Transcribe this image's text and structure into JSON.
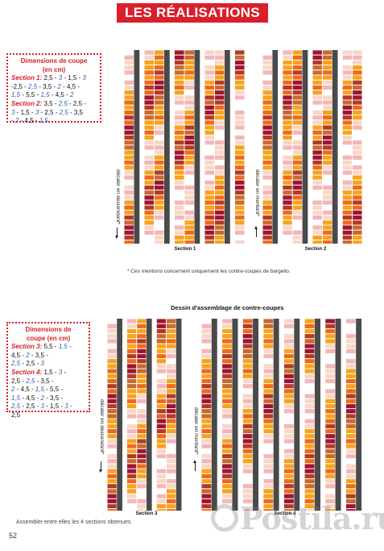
{
  "header": {
    "title": "LES RÉALISATIONS"
  },
  "dimensions_top": {
    "title_line1": "Dimensions de coupe",
    "title_line2": "(en cm)",
    "lines": [
      [
        {
          "t": "Section 1:",
          "c": "red"
        },
        {
          "t": " 2,5 - ",
          "c": "blk"
        },
        {
          "t": "3",
          "c": "blue"
        },
        {
          "t": " - 1,5 - ",
          "c": "blk"
        },
        {
          "t": "3",
          "c": "blue"
        }
      ],
      [
        {
          "t": "-2,5 - ",
          "c": "blk"
        },
        {
          "t": "2,5",
          "c": "blue"
        },
        {
          "t": " - 3,5 - ",
          "c": "blk"
        },
        {
          "t": "2",
          "c": "blue"
        },
        {
          "t": " - 4,5 -",
          "c": "blk"
        }
      ],
      [
        {
          "t": "1,5",
          "c": "blue"
        },
        {
          "t": " - 5,5 - ",
          "c": "blk"
        },
        {
          "t": "1,5",
          "c": "blue"
        },
        {
          "t": " - 4,5 - ",
          "c": "blk"
        },
        {
          "t": "2",
          "c": "blue"
        }
      ],
      [
        {
          "t": "Section 2:",
          "c": "red"
        },
        {
          "t": " 3,5 - ",
          "c": "blk"
        },
        {
          "t": "2,5",
          "c": "blue"
        },
        {
          "t": " - 2,5 -",
          "c": "blk"
        }
      ],
      [
        {
          "t": "3",
          "c": "blue"
        },
        {
          "t": " - 1,5 - ",
          "c": "blk"
        },
        {
          "t": "3",
          "c": "blue"
        },
        {
          "t": " - 2,5 - ",
          "c": "blk"
        },
        {
          "t": "2,5",
          "c": "blue"
        },
        {
          "t": " - 3,5",
          "c": "blk"
        }
      ],
      [
        {
          "t": " - ",
          "c": "blk"
        },
        {
          "t": "2",
          "c": "blue"
        },
        {
          "t": " - 4,5 - ",
          "c": "blk"
        },
        {
          "t": "1,5",
          "c": "blue"
        }
      ]
    ]
  },
  "dimensions_bottom": {
    "title_line1": "Dimensions de",
    "title_line2": "coupe (en cm)",
    "lines": [
      [
        {
          "t": "Section 3:",
          "c": "red"
        },
        {
          "t": " 5,5 - ",
          "c": "blk"
        },
        {
          "t": "1,5",
          "c": "blue"
        },
        {
          "t": " -",
          "c": "blk"
        }
      ],
      [
        {
          "t": "4,5 - ",
          "c": "blk"
        },
        {
          "t": "2",
          "c": "blue"
        },
        {
          "t": " - 3,5 -",
          "c": "blk"
        }
      ],
      [
        {
          "t": " 2,5",
          "c": "blue"
        },
        {
          "t": " - 2,5 - ",
          "c": "blk"
        },
        {
          "t": "3",
          "c": "blue"
        }
      ],
      [
        {
          "t": "Section 4:",
          "c": "red"
        },
        {
          "t": " 1,5 - ",
          "c": "blk"
        },
        {
          "t": "3",
          "c": "blue"
        },
        {
          "t": " -",
          "c": "blk"
        }
      ],
      [
        {
          "t": "2,5 - ",
          "c": "blk"
        },
        {
          "t": "2,5",
          "c": "blue"
        },
        {
          "t": " - 3,5 -",
          "c": "blk"
        }
      ],
      [
        {
          "t": " 2",
          "c": "blue"
        },
        {
          "t": " - 4,5 - ",
          "c": "blk"
        },
        {
          "t": "1,5",
          "c": "blue"
        },
        {
          "t": " - 5,5 -",
          "c": "blk"
        }
      ],
      [
        {
          "t": "1,5",
          "c": "blue"
        },
        {
          "t": " - 4,5 - ",
          "c": "blk"
        },
        {
          "t": "2",
          "c": "blue"
        },
        {
          "t": " - 3,5 -",
          "c": "blk"
        }
      ],
      [
        {
          "t": "2,5",
          "c": "blue"
        },
        {
          "t": " - 2,5 - ",
          "c": "blk"
        },
        {
          "t": "3",
          "c": "blue"
        },
        {
          "t": " - 1,5 - ",
          "c": "blk"
        },
        {
          "t": "3",
          "c": "blue"
        },
        {
          "t": " -",
          "c": "blk"
        }
      ],
      [
        {
          "t": "2,5",
          "c": "blk"
        }
      ]
    ]
  },
  "labels": {
    "decaler_descendant": "décaler en descendant*",
    "decaler_montant": "décaler en montant*",
    "section1": "Section 1",
    "section2": "Section 2",
    "section3": "Section 3",
    "section4": "Section 4",
    "note": "* Ces mentions concernent uniquement les contre-coupes de bargello.",
    "assembly_heading": "Dessin d'assemblage de contre-coupes",
    "footer": "Assembler entre elles les 4 sections obtenues.",
    "page_number": "52",
    "watermark": "Postila.ru"
  },
  "palette": [
    "#e2201f",
    "#ee6a1a",
    "#f6a31e",
    "#f8d7c6",
    "#f4b6b8",
    "#9e1530",
    "#b23a26",
    "#c86a2e",
    "#ffffff"
  ],
  "stripe_color": "#4a4a4a"
}
